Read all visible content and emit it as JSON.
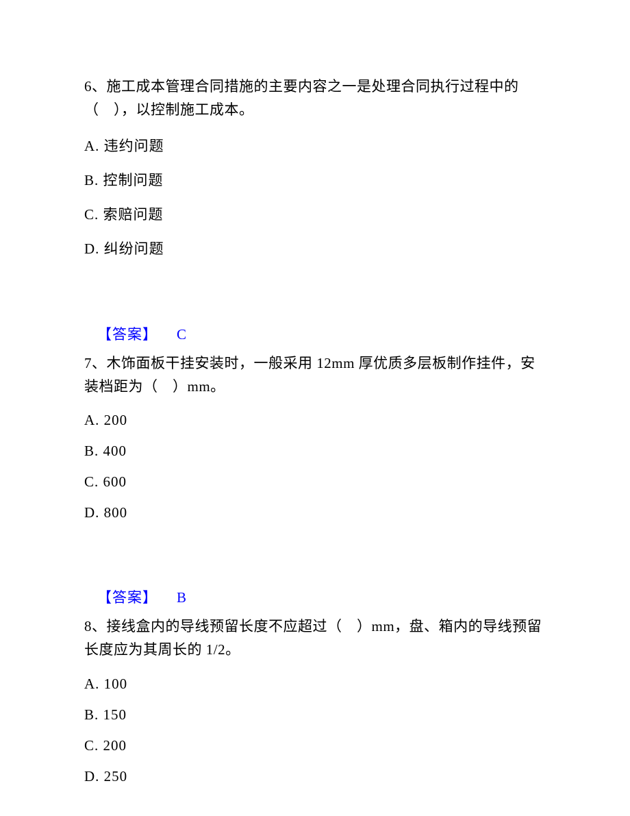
{
  "questions": [
    {
      "number": "6",
      "stem": "6、施工成本管理合同措施的主要内容之一是处理合同执行过程中的（　），以控制施工成本。",
      "options": {
        "A": "A. 违约问题",
        "B": "B. 控制问题",
        "C": "C. 索赔问题",
        "D": "D. 纠纷问题"
      },
      "answer_label": "【答案】",
      "answer": "C"
    },
    {
      "number": "7",
      "stem": "7、木饰面板干挂安装时，一般采用 12mm 厚优质多层板制作挂件，安装档距为（　）mm。",
      "options": {
        "A": "A. 200",
        "B": "B. 400",
        "C": "C. 600",
        "D": "D. 800"
      },
      "answer_label": "【答案】",
      "answer": "B"
    },
    {
      "number": "8",
      "stem": "8、接线盒内的导线预留长度不应超过（　）mm，盘、箱内的导线预留长度应为其周长的 1/2。",
      "options": {
        "A": "A. 100",
        "B": "B. 150",
        "C": "C. 200",
        "D": "D. 250"
      }
    }
  ]
}
